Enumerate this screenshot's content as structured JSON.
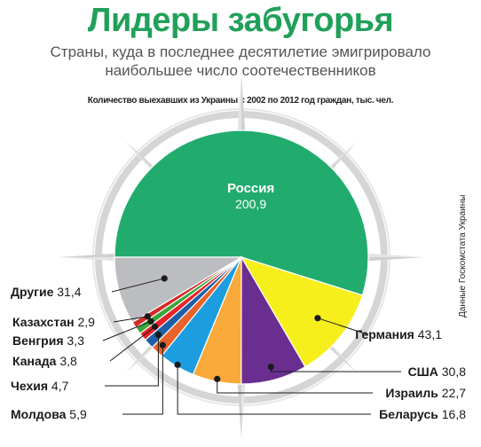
{
  "title": "Лидеры забугорья",
  "subtitle": "Страны, куда в последнее десятилетие эмигрировало наибольшее число соотечественников",
  "note": "Количество выехавших из Украины с 2002 по 2012 год граждан, тыс. чел.",
  "source": "Данные Госкомстата Украины",
  "chart_data": {
    "type": "pie",
    "slices": [
      {
        "label": "Россия",
        "value": 200.9,
        "value_text": "200,9",
        "color": "#21ac6e"
      },
      {
        "label": "Германия",
        "value": 43.1,
        "value_text": "43,1",
        "color": "#f7ef1c"
      },
      {
        "label": "США",
        "value": 30.8,
        "value_text": "30,8",
        "color": "#6a2e91"
      },
      {
        "label": "Израиль",
        "value": 22.7,
        "value_text": "22,7",
        "color": "#f9aa3a"
      },
      {
        "label": "Беларусь",
        "value": 16.8,
        "value_text": "16,8",
        "color": "#1b9de0"
      },
      {
        "label": "Молдова",
        "value": 5.9,
        "value_text": "5,9",
        "color": "#e8632a"
      },
      {
        "label": "Чехия",
        "value": 4.7,
        "value_text": "4,7",
        "color": "#1e5fa8"
      },
      {
        "label": "Канада",
        "value": 3.8,
        "value_text": "3,8",
        "color": "#e8232a"
      },
      {
        "label": "Венгрия",
        "value": 3.3,
        "value_text": "3,3",
        "color": "#3aa53a"
      },
      {
        "label": "Казахстан",
        "value": 2.9,
        "value_text": "2,9",
        "color": "#d42a2a"
      },
      {
        "label": "Другие",
        "value": 31.4,
        "value_text": "31,4",
        "color": "#bcbdc0"
      }
    ]
  }
}
